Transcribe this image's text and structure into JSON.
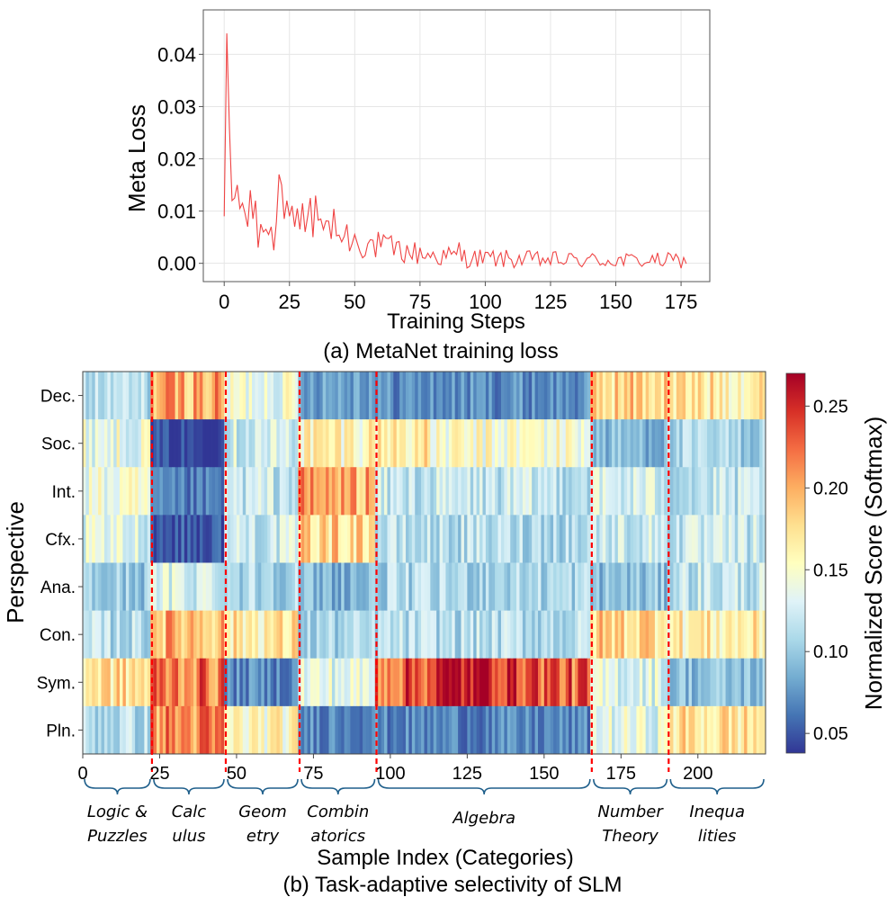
{
  "chart_data": [
    {
      "type": "line",
      "title": "(a) MetaNet training loss",
      "xlabel": "Training Steps",
      "ylabel": "Meta Loss",
      "xlim": [
        -8,
        186
      ],
      "ylim": [
        -0.0035,
        0.0485
      ],
      "xticks": [
        "0",
        "25",
        "50",
        "75",
        "100",
        "125",
        "150",
        "175"
      ],
      "yticks": [
        "0.00",
        "0.01",
        "0.02",
        "0.03",
        "0.04"
      ],
      "grid": true,
      "line_color": "#ef4444",
      "keypoints": [
        [
          0,
          0.009
        ],
        [
          1,
          0.044
        ],
        [
          2,
          0.026
        ],
        [
          3,
          0.012
        ],
        [
          4,
          0.0125
        ],
        [
          5,
          0.015
        ],
        [
          6,
          0.0105
        ],
        [
          7,
          0.0115
        ],
        [
          8,
          0.0095
        ],
        [
          9,
          0.007
        ],
        [
          10,
          0.014
        ],
        [
          11,
          0.0085
        ],
        [
          12,
          0.012
        ],
        [
          13,
          0.003
        ],
        [
          14,
          0.0075
        ],
        [
          15,
          0.006
        ],
        [
          16,
          0.0065
        ],
        [
          17,
          0.0055
        ],
        [
          18,
          0.007
        ],
        [
          19,
          0.0025
        ],
        [
          20,
          0.008
        ],
        [
          21,
          0.017
        ],
        [
          22,
          0.015
        ],
        [
          23,
          0.0085
        ],
        [
          24,
          0.012
        ],
        [
          25,
          0.009
        ],
        [
          26,
          0.011
        ],
        [
          27,
          0.007
        ],
        [
          28,
          0.0105
        ],
        [
          29,
          0.0065
        ],
        [
          30,
          0.0115
        ],
        [
          31,
          0.006
        ],
        [
          32,
          0.009
        ],
        [
          33,
          0.0125
        ],
        [
          34,
          0.005
        ]
      ],
      "series": [
        {
          "name": "Meta Loss",
          "x_start": 0,
          "x_step": 1,
          "count": 178,
          "typical_range": [
            -0.002,
            0.012
          ]
        }
      ]
    },
    {
      "type": "heatmap",
      "title": "(b) Task-adaptive selectivity of SLM",
      "xlabel": "Sample Index (Categories)",
      "ylabel": "Perspective",
      "rows": [
        "Dec.",
        "Soc.",
        "Int.",
        "Cfx.",
        "Ana.",
        "Con.",
        "Sym.",
        "Pln."
      ],
      "n_samples": 222,
      "xticks": [
        0,
        25,
        50,
        75,
        100,
        125,
        150,
        175,
        200
      ],
      "colorbar": {
        "label": "Normalized Score (Softmax)",
        "range": [
          0.038,
          0.27
        ],
        "ticks": [
          "0.05",
          "0.10",
          "0.15",
          "0.20",
          "0.25"
        ],
        "colormap": "RdYlBu_r"
      },
      "boundaries": [
        22.5,
        46.5,
        70.5,
        95.5,
        165.5,
        190.5
      ],
      "boundary_color": "#ff0000",
      "categories": [
        {
          "line1": "Logic &",
          "line2": "Puzzles",
          "start": 0,
          "end": 22.5
        },
        {
          "line1": "Calc",
          "line2": "ulus",
          "start": 22.5,
          "end": 46.5
        },
        {
          "line1": "Geom",
          "line2": "etry",
          "start": 46.5,
          "end": 70.5
        },
        {
          "line1": "Combin",
          "line2": "atorics",
          "start": 70.5,
          "end": 95.5
        },
        {
          "line1": "Algebra",
          "line2": "",
          "start": 95.5,
          "end": 165.5
        },
        {
          "line1": "Number",
          "line2": "Theory",
          "start": 165.5,
          "end": 190.5
        },
        {
          "line1": "Inequa",
          "line2": "lities",
          "start": 190.5,
          "end": 222
        }
      ],
      "mean_scores": {
        "Dec.": [
          0.112,
          0.2,
          0.142,
          0.085,
          0.072,
          0.182,
          0.17
        ],
        "Soc.": [
          0.14,
          0.045,
          0.125,
          0.162,
          0.148,
          0.092,
          0.105
        ],
        "Int.": [
          0.14,
          0.062,
          0.12,
          0.2,
          0.118,
          0.125,
          0.115
        ],
        "Cfx.": [
          0.13,
          0.052,
          0.122,
          0.18,
          0.112,
          0.122,
          0.118
        ],
        "Ana.": [
          0.1,
          0.128,
          0.11,
          0.09,
          0.108,
          0.095,
          0.118
        ],
        "Con.": [
          0.112,
          0.195,
          0.168,
          0.105,
          0.112,
          0.182,
          0.165
        ],
        "Sym.": [
          0.175,
          0.22,
          0.07,
          0.135,
          0.225,
          0.132,
          0.095
        ],
        "Pln.": [
          0.112,
          0.212,
          0.155,
          0.072,
          0.068,
          0.135,
          0.172
        ]
      }
    }
  ]
}
